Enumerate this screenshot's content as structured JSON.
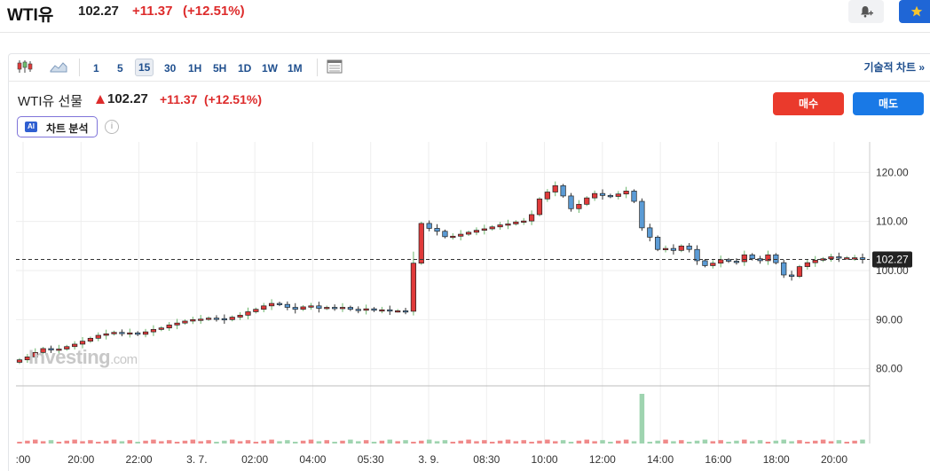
{
  "header": {
    "name": "WTI유",
    "price": "102.27",
    "change": "+11.37",
    "change_pct": "(+12.51%)"
  },
  "toolbar": {
    "timeframes": [
      "1",
      "5",
      "15",
      "30",
      "1H",
      "5H",
      "1D",
      "1W",
      "1M"
    ],
    "active_timeframe": "15",
    "advanced_chart": "기술적 차트 »"
  },
  "instrument": {
    "name": "WTI유 선물",
    "price": "102.27",
    "change": "+11.37",
    "change_pct": "(+12.51%)"
  },
  "ai": {
    "badge": "AI",
    "label": "차트 분석"
  },
  "trade": {
    "buy": "매수",
    "sell": "매도"
  },
  "watermark": {
    "brand": "Investing",
    "suffix": ".com"
  },
  "colors": {
    "up": "#e03a3a",
    "down": "#5b9bd5",
    "accent": "#1979e6",
    "buy": "#ea3a2c"
  },
  "chart_data": {
    "type": "candlestick",
    "price_ticks": [
      "120.00",
      "110.00",
      "100.00",
      "90.00",
      "80.00"
    ],
    "ylim": [
      76.5,
      123.5
    ],
    "last_price_label": "102.27",
    "last_price": 102.27,
    "x_ticks": [
      ":00",
      "20:00",
      "22:00",
      "3. 7.",
      "02:00",
      "04:00",
      "05:30",
      "3. 9.",
      "08:30",
      "10:00",
      "12:00",
      "14:00",
      "16:00",
      "18:00",
      "20:00"
    ],
    "grid": true,
    "closes": [
      81.8,
      82.4,
      83.3,
      84.1,
      83.8,
      84.0,
      84.5,
      85.0,
      85.6,
      86.2,
      86.8,
      87.1,
      87.4,
      87.2,
      87.3,
      87.0,
      87.5,
      88.0,
      88.3,
      88.9,
      89.3,
      89.7,
      90.0,
      90.1,
      90.3,
      90.2,
      90.0,
      90.5,
      90.9,
      91.6,
      92.1,
      92.8,
      93.3,
      93.1,
      92.5,
      92.1,
      92.6,
      92.8,
      92.3,
      92.5,
      92.4,
      92.5,
      92.1,
      91.9,
      92.2,
      91.9,
      92.0,
      91.8,
      91.8,
      91.7,
      101.5,
      109.6,
      108.6,
      108.0,
      106.9,
      107.0,
      107.4,
      107.8,
      108.2,
      108.5,
      108.9,
      109.3,
      109.5,
      109.9,
      110.1,
      111.4,
      114.6,
      116.0,
      117.3,
      115.2,
      112.6,
      113.5,
      114.8,
      115.7,
      115.3,
      115.1,
      115.6,
      116.2,
      114.1,
      108.7,
      106.8,
      104.3,
      104.5,
      104.1,
      105.0,
      104.3,
      102.0,
      101.0,
      101.5,
      102.2,
      101.9,
      101.8,
      103.2,
      102.4,
      102.0,
      103.2,
      101.6,
      99.1,
      98.8,
      100.8,
      101.6,
      102.1,
      102.4,
      102.8,
      102.6,
      102.6,
      102.6,
      102.27
    ],
    "volume_spike_index": 79
  }
}
